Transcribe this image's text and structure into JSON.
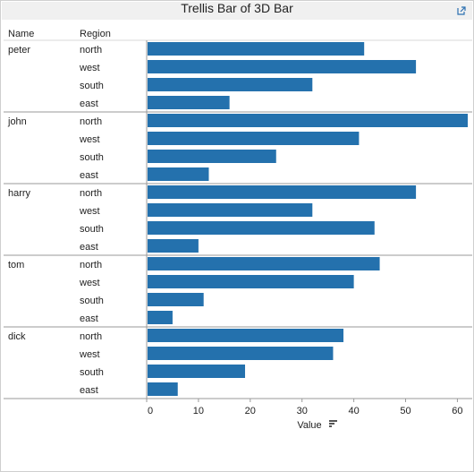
{
  "title": "Trellis Bar of 3D Bar",
  "header": {
    "name_col": "Name",
    "region_col": "Region"
  },
  "colors": {
    "bar": "#2471ad",
    "titlebar": "#f0f0f0"
  },
  "chart_data": {
    "type": "bar",
    "orientation": "horizontal",
    "xlabel": "Value",
    "xlim": [
      0,
      62
    ],
    "xticks": [
      0,
      10,
      20,
      30,
      40,
      50,
      60
    ],
    "regions": [
      "north",
      "west",
      "south",
      "east"
    ],
    "groups": [
      {
        "name": "peter",
        "values": [
          42,
          52,
          32,
          16
        ]
      },
      {
        "name": "john",
        "values": [
          62,
          41,
          25,
          12
        ]
      },
      {
        "name": "harry",
        "values": [
          52,
          32,
          44,
          10
        ]
      },
      {
        "name": "tom",
        "values": [
          45,
          40,
          11,
          5
        ]
      },
      {
        "name": "dick",
        "values": [
          38,
          36,
          19,
          6
        ]
      }
    ]
  }
}
